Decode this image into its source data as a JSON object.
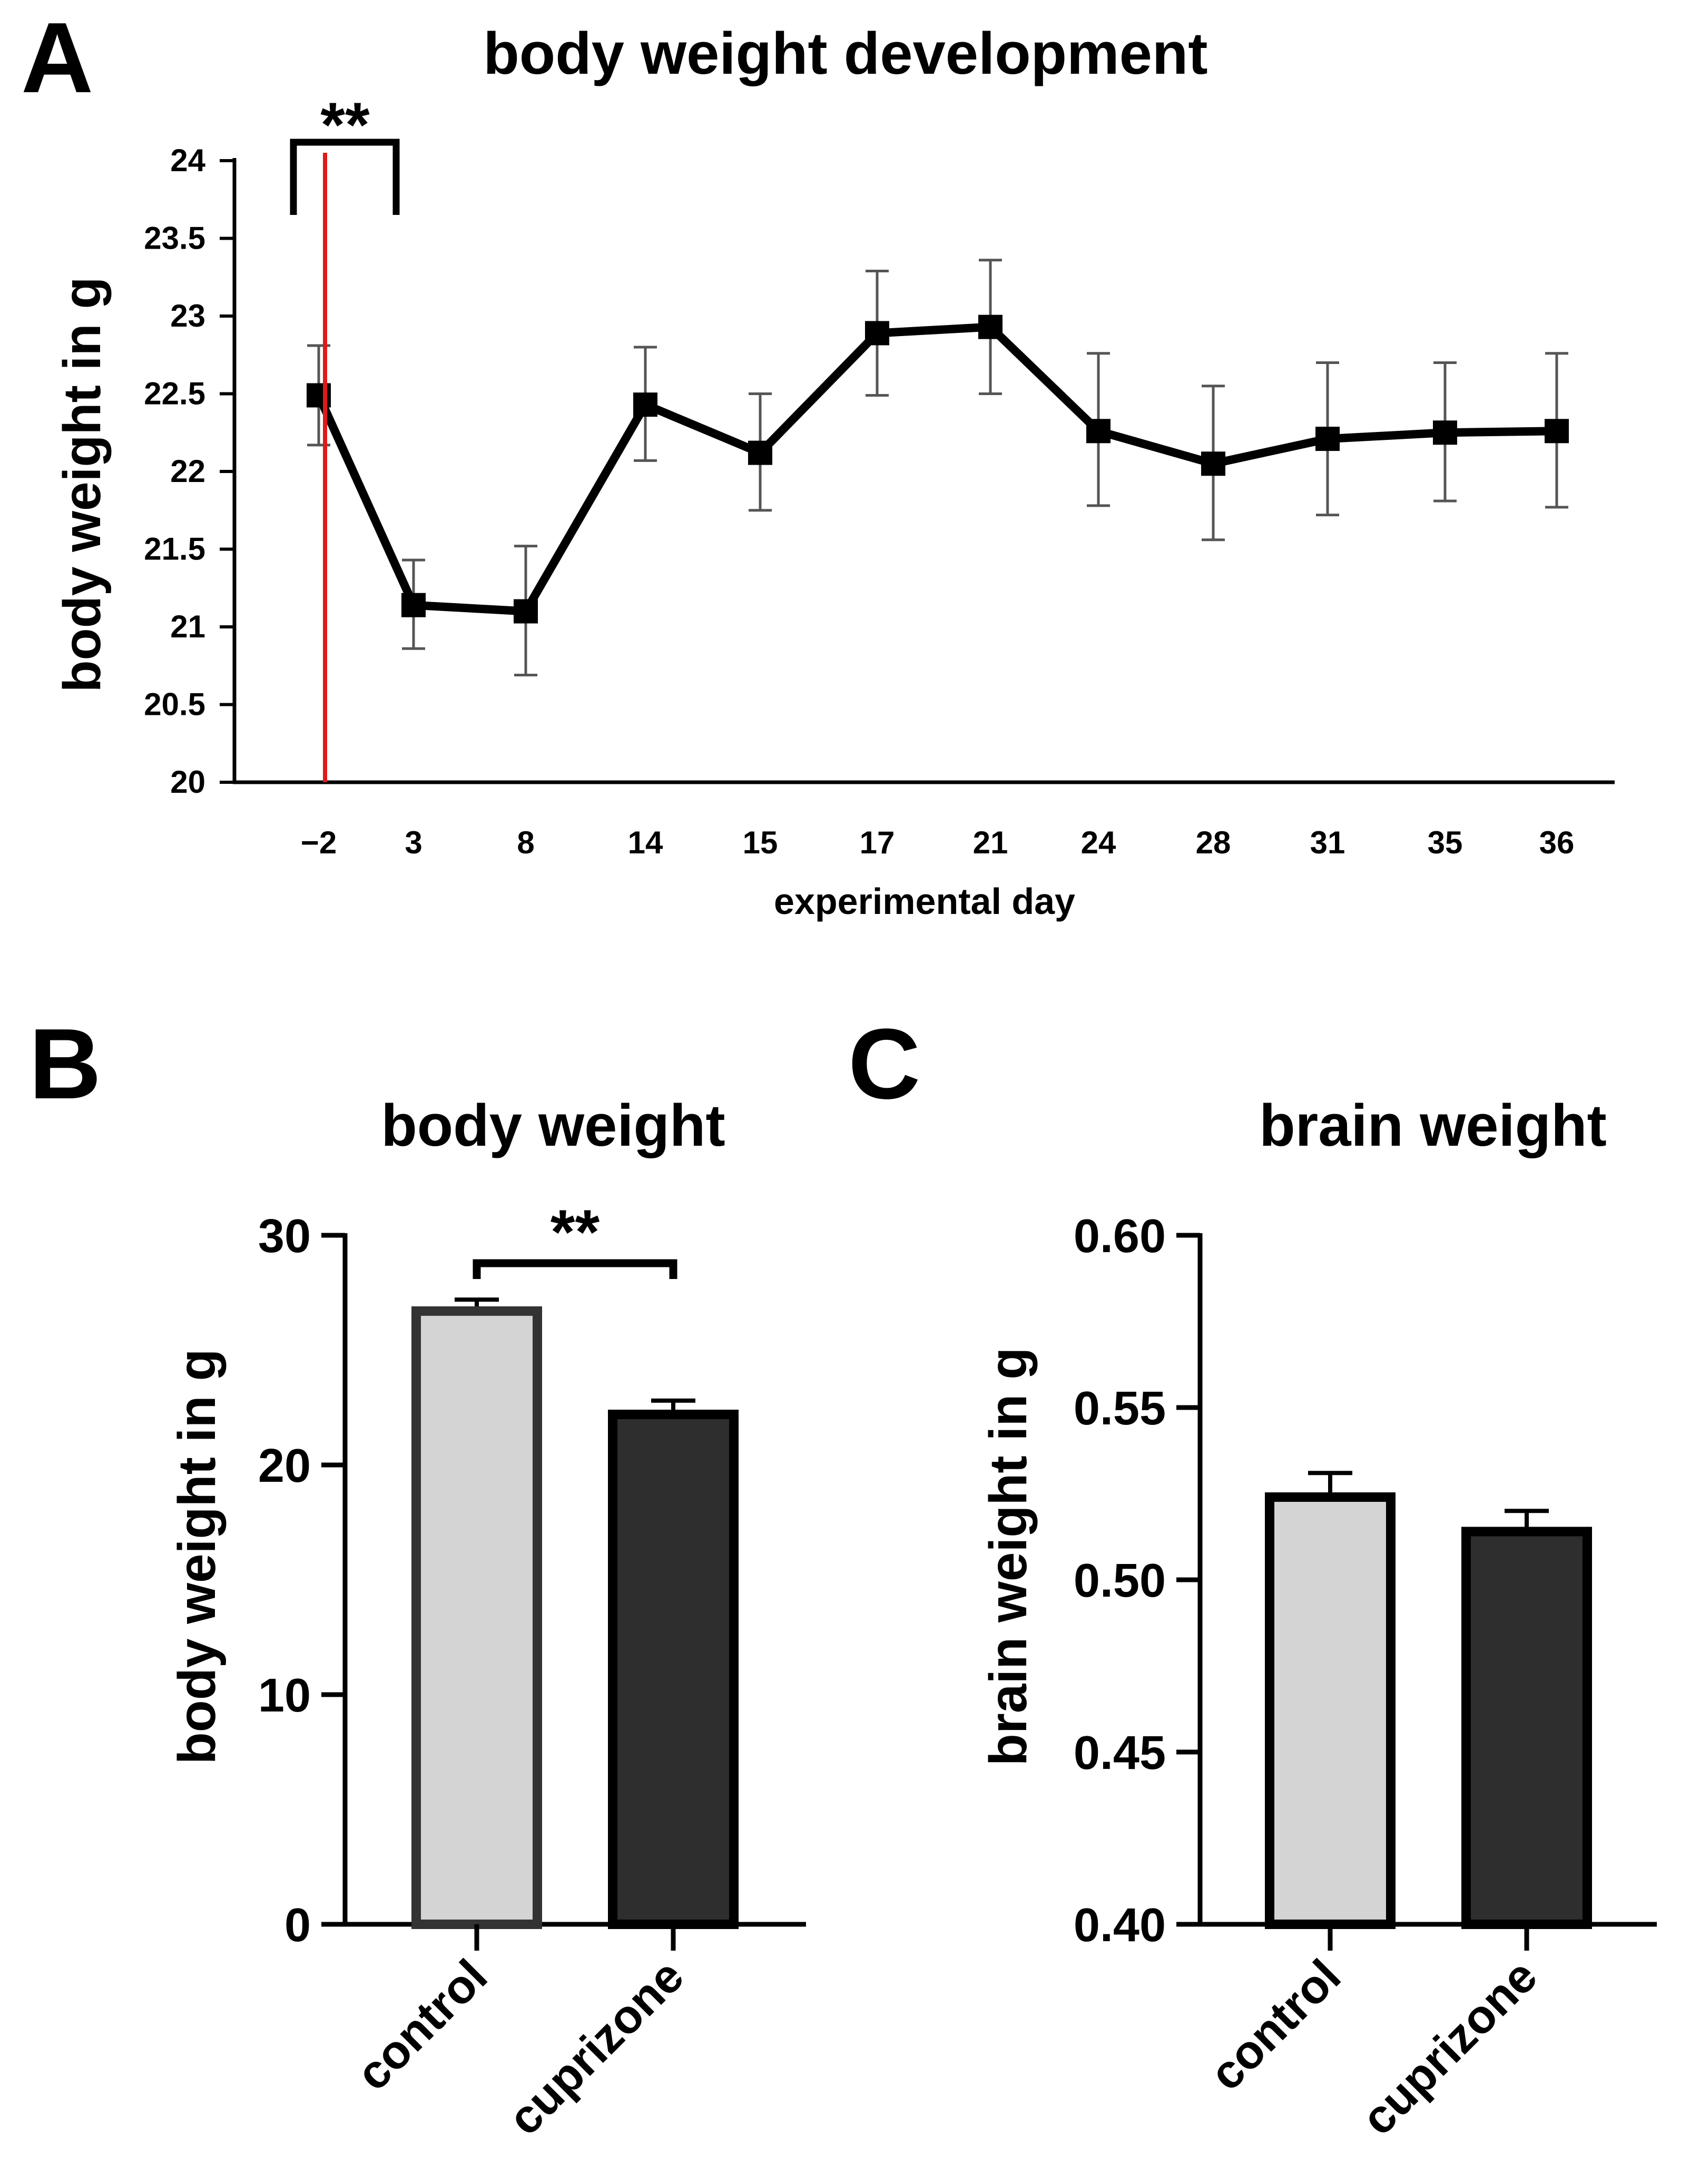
{
  "chart_data": [
    {
      "panel": "A",
      "type": "line",
      "title": "body weight development",
      "xlabel": "experimental day",
      "ylabel": "body weight in g",
      "categories": [
        "−2",
        "3",
        "8",
        "14",
        "15",
        "17",
        "21",
        "24",
        "28",
        "31",
        "35",
        "36"
      ],
      "yticks": [
        "20",
        "20.5",
        "21",
        "21.5",
        "22",
        "22.5",
        "23",
        "23.5",
        "24"
      ],
      "ylim": [
        20,
        24
      ],
      "series": [
        {
          "name": "body weight",
          "values": [
            22.49,
            21.14,
            21.1,
            22.43,
            22.12,
            22.89,
            22.93,
            22.26,
            22.05,
            22.21,
            22.25,
            22.26
          ],
          "error_low": [
            22.17,
            20.86,
            20.69,
            22.07,
            21.75,
            22.49,
            22.5,
            21.78,
            21.56,
            21.72,
            21.81,
            21.77
          ],
          "error_high": [
            22.81,
            21.43,
            21.52,
            22.8,
            22.5,
            23.29,
            23.36,
            22.76,
            22.55,
            22.7,
            22.7,
            22.76
          ]
        }
      ],
      "marker_line_color": "#e11919",
      "significance": {
        "label": "**",
        "from": "−2",
        "to": "3"
      }
    },
    {
      "panel": "B",
      "type": "bar",
      "title": "body weight",
      "ylabel": "body weight in g",
      "categories": [
        "control",
        "cuprizone"
      ],
      "values": [
        26.7,
        22.2
      ],
      "error_high": [
        27.2,
        22.8
      ],
      "yticks": [
        "0",
        "10",
        "20",
        "30"
      ],
      "ylim": [
        0,
        30
      ],
      "bar_colors": [
        "#d4d4d4",
        "#2e2e2e"
      ],
      "significance": {
        "label": "**",
        "from": "control",
        "to": "cuprizone"
      }
    },
    {
      "panel": "C",
      "type": "bar",
      "title": "brain weight",
      "ylabel": "brain weight in g",
      "categories": [
        "control",
        "cuprizone"
      ],
      "values": [
        0.524,
        0.514
      ],
      "error_high": [
        0.531,
        0.52
      ],
      "yticks": [
        "0.40",
        "0.45",
        "0.50",
        "0.55",
        "0.60"
      ],
      "ylim": [
        0.4,
        0.6
      ],
      "bar_colors": [
        "#d4d4d4",
        "#2e2e2e"
      ]
    }
  ],
  "panels": {
    "a": "A",
    "b": "B",
    "c": "C"
  }
}
